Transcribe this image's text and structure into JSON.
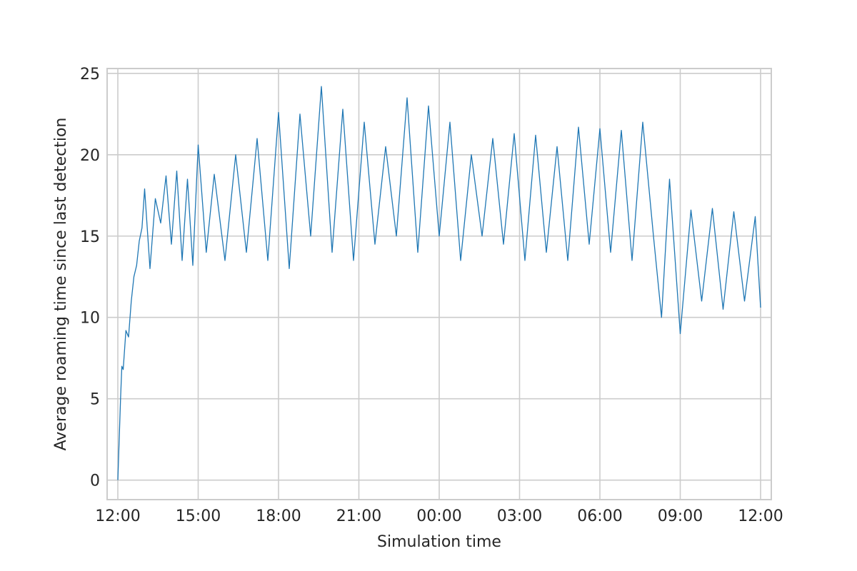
{
  "chart_data": {
    "type": "line",
    "title": "",
    "xlabel": "Simulation time",
    "ylabel": "Average roaming time since last detection",
    "xlim_hours": [
      -0.4,
      24.4
    ],
    "ylim": [
      -1.2,
      25.3
    ],
    "grid": true,
    "x_ticks": [
      {
        "hour": 0,
        "label": "12:00"
      },
      {
        "hour": 3,
        "label": "15:00"
      },
      {
        "hour": 6,
        "label": "18:00"
      },
      {
        "hour": 9,
        "label": "21:00"
      },
      {
        "hour": 12,
        "label": "00:00"
      },
      {
        "hour": 15,
        "label": "03:00"
      },
      {
        "hour": 18,
        "label": "06:00"
      },
      {
        "hour": 21,
        "label": "09:00"
      },
      {
        "hour": 24,
        "label": "12:00"
      }
    ],
    "y_ticks": [
      0,
      5,
      10,
      15,
      20,
      25
    ],
    "series": [
      {
        "color": "#1f77b4",
        "x_hours": [
          0,
          0.1,
          0.15,
          0.2,
          0.3,
          0.4,
          0.5,
          0.6,
          0.7,
          0.8,
          0.9,
          1.0,
          1.2,
          1.4,
          1.6,
          1.8,
          2.0,
          2.2,
          2.4,
          2.6,
          2.8,
          3.0,
          3.3,
          3.6,
          4.0,
          4.4,
          4.8,
          5.2,
          5.6,
          6.0,
          6.4,
          6.8,
          7.2,
          7.6,
          8.0,
          8.4,
          8.8,
          9.2,
          9.6,
          10.0,
          10.4,
          10.8,
          11.2,
          11.6,
          12.0,
          12.4,
          12.8,
          13.2,
          13.6,
          14.0,
          14.4,
          14.8,
          15.2,
          15.6,
          16.0,
          16.4,
          16.8,
          17.2,
          17.6,
          18.0,
          18.4,
          18.8,
          19.2,
          19.6,
          20.0,
          20.3,
          20.6,
          21.0,
          21.4,
          21.8,
          22.2,
          22.6,
          23.0,
          23.4,
          23.8,
          24.0
        ],
        "values": [
          0,
          5.0,
          7.0,
          6.8,
          9.2,
          8.8,
          11.0,
          12.5,
          13.2,
          14.7,
          15.5,
          17.9,
          13.0,
          17.3,
          15.8,
          18.7,
          14.5,
          19.0,
          13.5,
          18.5,
          13.2,
          20.6,
          14.0,
          18.8,
          13.5,
          20.0,
          14.0,
          21.0,
          13.5,
          22.6,
          13.0,
          22.5,
          15.0,
          24.2,
          14.0,
          22.8,
          13.5,
          22.0,
          14.5,
          20.5,
          15.0,
          23.5,
          14.0,
          23.0,
          15.0,
          22.0,
          13.5,
          20.0,
          15.0,
          21.0,
          14.5,
          21.3,
          13.5,
          21.2,
          14.0,
          20.5,
          13.5,
          21.7,
          14.5,
          21.6,
          14.0,
          21.5,
          13.5,
          22.0,
          15.0,
          10.0,
          18.5,
          9.0,
          16.6,
          11.0,
          16.7,
          10.5,
          16.5,
          11.0,
          16.2,
          10.6
        ]
      }
    ]
  }
}
